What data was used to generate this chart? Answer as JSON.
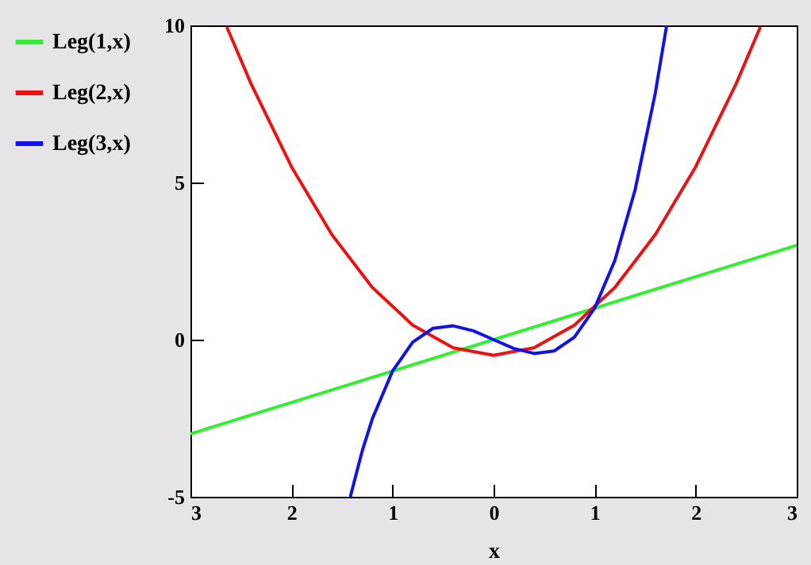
{
  "chart_data": {
    "type": "line",
    "xlabel": "x",
    "xlim": [
      -3,
      3
    ],
    "ylim": [
      -5,
      10
    ],
    "xticks": [
      {
        "value": -3,
        "label": "3"
      },
      {
        "value": -2,
        "label": "2"
      },
      {
        "value": -1,
        "label": "1"
      },
      0,
      1,
      2,
      3
    ],
    "yticks": [
      -5,
      0,
      5,
      10
    ],
    "legend": "left",
    "grid": false,
    "marker": "none",
    "line_style": "solid",
    "series": [
      {
        "name": "Leg(1,x)",
        "color": "#33ee33",
        "x": [
          -3,
          0,
          3
        ],
        "values": [
          -3,
          0,
          3
        ]
      },
      {
        "name": "Leg(2,x)",
        "color": "#ee1111",
        "x": [
          -2.64,
          -2.4,
          -2,
          -1.6,
          -1.2,
          -0.8,
          -0.4,
          0,
          0.4,
          0.8,
          1.2,
          1.6,
          2,
          2.4,
          2.64
        ],
        "values": [
          9.95,
          8.14,
          5.5,
          3.34,
          1.66,
          0.46,
          -0.26,
          -0.5,
          -0.26,
          0.46,
          1.66,
          3.34,
          5.5,
          8.14,
          9.95
        ]
      },
      {
        "name": "Leg(3,x)",
        "color": "#1111ee",
        "x": [
          -1.418,
          -1.3,
          -1.2,
          -1,
          -0.8,
          -0.6,
          -0.4,
          -0.2,
          0,
          0.2,
          0.4,
          0.6,
          0.8,
          1,
          1.2,
          1.4,
          1.6,
          1.713
        ],
        "values": [
          -5,
          -3.54,
          -2.52,
          -1,
          -0.08,
          0.36,
          0.44,
          0.28,
          0,
          -0.28,
          -0.44,
          -0.36,
          0.08,
          1,
          2.52,
          4.76,
          7.84,
          10
        ]
      }
    ]
  }
}
